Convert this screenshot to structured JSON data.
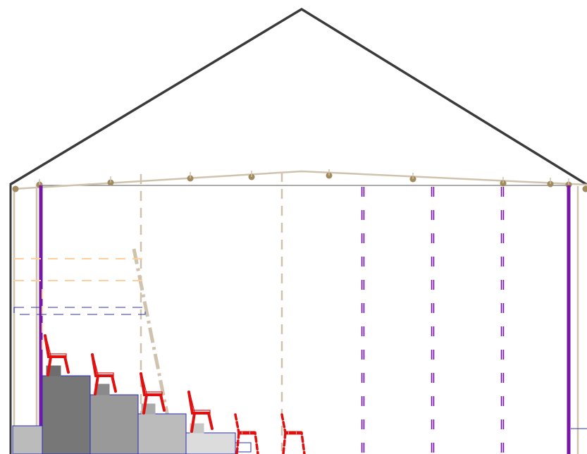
{
  "drawing": {
    "kind": "cross-section",
    "labels": []
  },
  "colors": {
    "roof": "#3a3a3a",
    "frame": "#cfc3ad",
    "bolt": "#a08a5e",
    "purple": "#7a16a6",
    "red": "#e01010",
    "blue": "#2c2cbf",
    "orange": "#ffcf9e",
    "tier_dark": "#777777",
    "tier_mid": "#999999",
    "tier_light": "#bbbbbb",
    "tier_pale": "#dcdcdc"
  },
  "elements": {
    "seating_tiers": 4,
    "fixed_chairs": 4,
    "dashed_chairs": 2,
    "dashed_purple_columns": 3,
    "roof_bolts": 12
  }
}
